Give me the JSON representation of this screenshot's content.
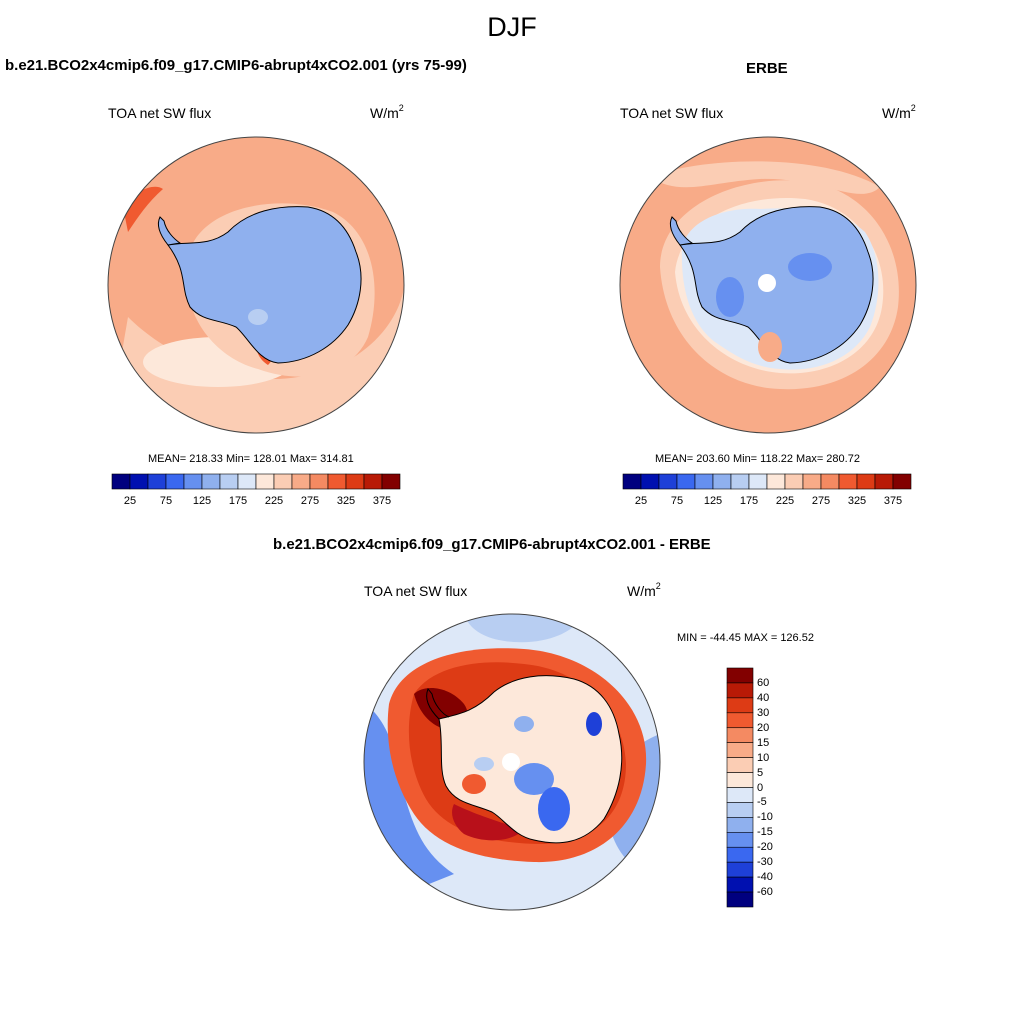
{
  "figure_title": "DJF",
  "panels": [
    {
      "title": "b.e21.BCO2x4cmip6.f09_g17.CMIP6-abrupt4xCO2.001 (yrs 75-99)",
      "left_label": "TOA net SW flux",
      "units_base": "W/m",
      "units_exp": "2",
      "stats": "MEAN= 218.33  Min= 128.01  Max= 314.81"
    },
    {
      "title": "ERBE",
      "left_label": "TOA net SW flux",
      "units_base": "W/m",
      "units_exp": "2",
      "stats": "MEAN= 203.60  Min= 118.22  Max= 280.72"
    },
    {
      "title": "b.e21.BCO2x4cmip6.f09_g17.CMIP6-abrupt4xCO2.001 - ERBE",
      "left_label": "TOA net SW flux",
      "units_base": "W/m",
      "units_exp": "2",
      "stats": "MIN = -44.45 MAX = 126.52"
    }
  ],
  "colorbar_abs": {
    "ticks": [
      "25",
      "75",
      "125",
      "175",
      "225",
      "275",
      "325",
      "375"
    ],
    "colors": [
      "#00007f",
      "#0010b0",
      "#1e40d8",
      "#3a68f0",
      "#6690f0",
      "#8fb0ee",
      "#b8cef2",
      "#dde8f8",
      "#fde8da",
      "#fbcdb4",
      "#f8ab88",
      "#f48a62",
      "#f05a30",
      "#dd3b15",
      "#b81a06",
      "#820000"
    ]
  },
  "colorbar_diff": {
    "ticks": [
      "60",
      "40",
      "30",
      "20",
      "15",
      "10",
      "5",
      "0",
      "-5",
      "-10",
      "-15",
      "-20",
      "-30",
      "-40",
      "-60"
    ],
    "colors": [
      "#820000",
      "#b81a06",
      "#dd3b15",
      "#f05a30",
      "#f48a62",
      "#f8ab88",
      "#fbcdb4",
      "#fde8da",
      "#dde8f8",
      "#b8cef2",
      "#8fb0ee",
      "#6690f0",
      "#3a68f0",
      "#1e40d8",
      "#0010b0",
      "#00007f"
    ]
  }
}
